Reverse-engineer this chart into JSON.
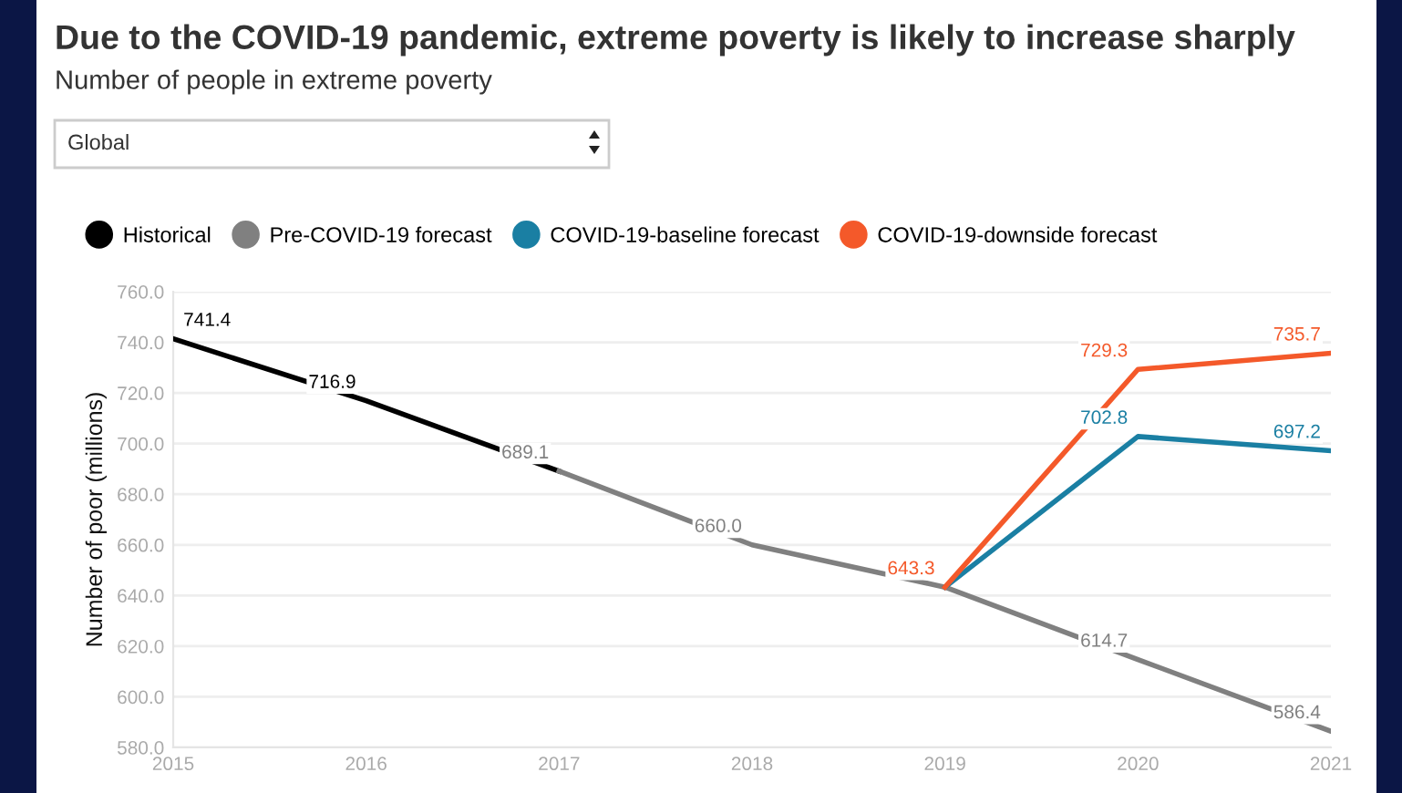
{
  "chart_data": {
    "type": "line",
    "title": "Due to the COVID-19 pandemic, extreme poverty is likely to increase sharply",
    "subtitle": "Number of people in extreme poverty",
    "ylabel": "Number of poor (millions)",
    "annotations": [
      "Global"
    ],
    "series": [
      {
        "name": "Historical",
        "color": "#000000",
        "x": [
          2015,
          2016,
          2017
        ],
        "values": [
          741.4,
          716.9,
          689.1
        ],
        "value_labels": [
          "741.4",
          "716.9",
          null
        ]
      },
      {
        "name": "Pre-COVID-19 forecast",
        "color": "#808080",
        "x": [
          2017,
          2018,
          2019,
          2020,
          2021
        ],
        "values": [
          689.1,
          660.0,
          643.3,
          614.7,
          586.4
        ],
        "value_labels": [
          "689.1",
          "660.0",
          null,
          "614.7",
          "586.4"
        ]
      },
      {
        "name": "COVID-19-baseline forecast",
        "color": "#1a7fa3",
        "x": [
          2019,
          2020,
          2021
        ],
        "values": [
          643.3,
          702.8,
          697.2
        ],
        "value_labels": [
          null,
          "702.8",
          "697.2"
        ]
      },
      {
        "name": "COVID-19-downside forecast",
        "color": "#f4592a",
        "x": [
          2019,
          2020,
          2021
        ],
        "values": [
          643.3,
          729.3,
          735.7
        ],
        "value_labels": [
          "643.3",
          "729.3",
          "735.7"
        ]
      }
    ],
    "xlim": [
      2015,
      2021
    ],
    "xticks": [
      2015,
      2016,
      2017,
      2018,
      2019,
      2020,
      2021
    ],
    "ylim": [
      580,
      760
    ],
    "yticks": [
      {
        "value": 580,
        "label": "580.0"
      },
      {
        "value": 600,
        "label": "600.0"
      },
      {
        "value": 620,
        "label": "620.0"
      },
      {
        "value": 640,
        "label": "640.0"
      },
      {
        "value": 660,
        "label": "660.0"
      },
      {
        "value": 680,
        "label": "680.0"
      },
      {
        "value": 700,
        "label": "700.0"
      },
      {
        "value": 720,
        "label": "720.0"
      },
      {
        "value": 740,
        "label": "740.0"
      },
      {
        "value": 760,
        "label": "760.0"
      }
    ],
    "grid": "y",
    "legend": "top left",
    "marker": "none",
    "line_style": "solid"
  }
}
